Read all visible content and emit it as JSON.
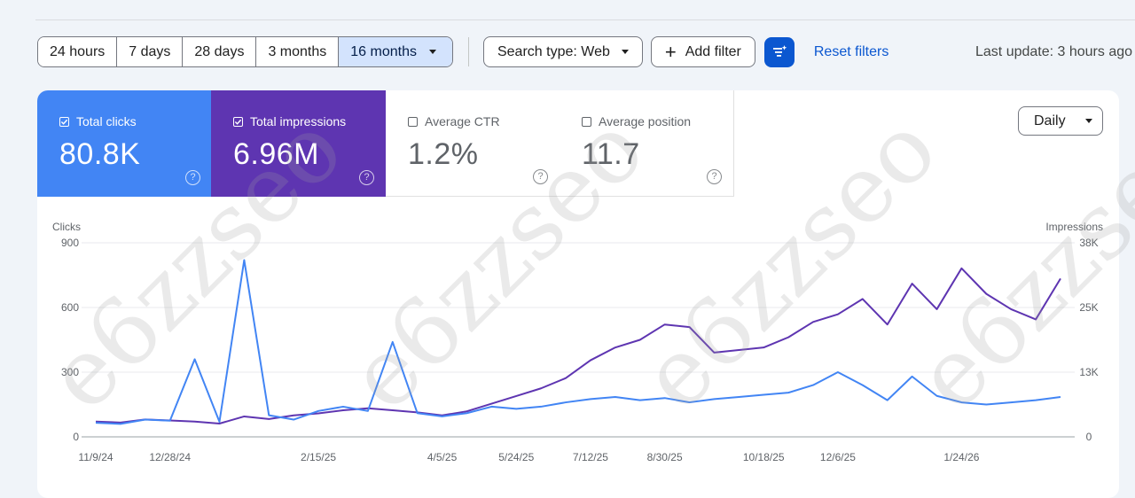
{
  "toolbar": {
    "ranges": [
      "24 hours",
      "7 days",
      "28 days",
      "3 months",
      "16 months"
    ],
    "active_range": "16 months",
    "search_type": "Search type: Web",
    "add_filter": "Add filter",
    "reset_filters": "Reset filters",
    "last_update": "Last update: 3 hours ago"
  },
  "metrics": {
    "clicks": {
      "label": "Total clicks",
      "value": "80.8K",
      "checked": true
    },
    "impressions": {
      "label": "Total impressions",
      "value": "6.96M",
      "checked": true
    },
    "ctr": {
      "label": "Average CTR",
      "value": "1.2%",
      "checked": false
    },
    "position": {
      "label": "Average position",
      "value": "11.7",
      "checked": false
    }
  },
  "granularity": "Daily",
  "watermark": "e6zzseo",
  "colors": {
    "clicks": "#4285f4",
    "impressions": "#5e35b1",
    "accent": "#0b57d0"
  },
  "chart_data": {
    "type": "line",
    "x": [
      "11/9/24",
      "11/25/24",
      "12/12/24",
      "12/28/24",
      "1/8/25",
      "1/13/25",
      "1/19/25",
      "1/24/25",
      "2/1/25",
      "2/15/25",
      "3/1/25",
      "3/16/25",
      "3/22/25",
      "3/25/25",
      "4/5/25",
      "4/22/25",
      "5/8/25",
      "5/24/25",
      "6/10/25",
      "6/25/25",
      "7/12/25",
      "7/28/25",
      "8/14/25",
      "8/30/25",
      "9/5/25",
      "9/15/25",
      "10/1/25",
      "10/18/25",
      "11/4/25",
      "11/20/25",
      "12/6/25",
      "12/20/25",
      "1/1/26",
      "1/9/26",
      "1/17/26",
      "1/24/26",
      "2/1/26",
      "2/10/26",
      "2/20/26",
      "2/28/26"
    ],
    "x_ticks": [
      "11/9/24",
      "12/28/24",
      "2/15/25",
      "4/5/25",
      "5/24/25",
      "7/12/25",
      "8/30/25",
      "10/18/25",
      "12/6/25",
      "1/24/26"
    ],
    "series": [
      {
        "name": "Clicks",
        "axis": "left",
        "color": "#4285f4",
        "values": [
          65,
          60,
          80,
          75,
          360,
          70,
          820,
          100,
          80,
          120,
          140,
          120,
          440,
          110,
          95,
          110,
          140,
          130,
          140,
          160,
          175,
          185,
          170,
          180,
          160,
          175,
          185,
          195,
          205,
          240,
          300,
          240,
          170,
          280,
          190,
          160,
          150,
          160,
          170,
          185
        ]
      },
      {
        "name": "Impressions",
        "axis": "right",
        "color": "#5e35b1",
        "values": [
          3000,
          2800,
          3400,
          3200,
          3000,
          2600,
          4000,
          3500,
          4200,
          4600,
          5200,
          5600,
          5200,
          4800,
          4200,
          5000,
          6500,
          8000,
          9500,
          11500,
          15000,
          17500,
          19000,
          22000,
          21500,
          16500,
          17000,
          17500,
          19500,
          22500,
          24000,
          27000,
          22000,
          30000,
          25000,
          33000,
          28000,
          25000,
          23000,
          31000
        ]
      }
    ],
    "y_left": {
      "label": "Clicks",
      "ticks": [
        0,
        300,
        600,
        900
      ],
      "range": [
        0,
        900
      ]
    },
    "y_right": {
      "label": "Impressions",
      "ticks": [
        "0",
        "13K",
        "25K",
        "38K"
      ],
      "range": [
        0,
        38000
      ]
    },
    "grid": true
  }
}
